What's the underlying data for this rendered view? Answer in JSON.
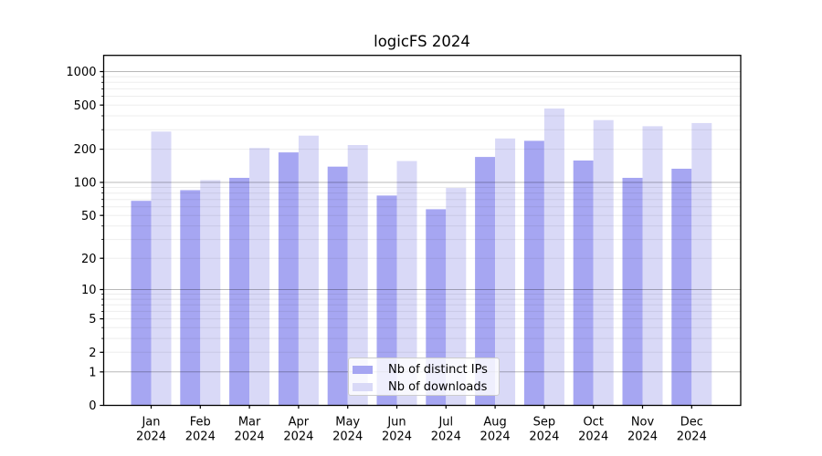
{
  "chart_data": {
    "type": "bar",
    "title": "logicFS 2024",
    "categories": [
      "Jan",
      "Feb",
      "Mar",
      "Apr",
      "May",
      "Jun",
      "Jul",
      "Aug",
      "Sep",
      "Oct",
      "Nov",
      "Dec"
    ],
    "category_year": "2024",
    "series": [
      {
        "name": "Nb of distinct IPs",
        "color": "#a6a6f2",
        "values": [
          68,
          85,
          110,
          187,
          139,
          76,
          57,
          170,
          238,
          158,
          110,
          133
        ]
      },
      {
        "name": "Nb of downloads",
        "color": "#d9d9f7",
        "values": [
          288,
          105,
          205,
          265,
          218,
          156,
          89,
          250,
          465,
          366,
          322,
          344
        ]
      }
    ],
    "yscale": "log1p",
    "ylim": [
      0,
      1400
    ],
    "ytick_labels": [
      0,
      1,
      2,
      5,
      10,
      20,
      50,
      100,
      200,
      500,
      1000
    ],
    "grid": true,
    "legend_position": "lower-center",
    "colors": {
      "spine": "#000000",
      "grid_major": "rgba(0,0,0,0.28)",
      "grid_minor": "rgba(0,0,0,0.07)",
      "background": "#ffffff"
    }
  }
}
